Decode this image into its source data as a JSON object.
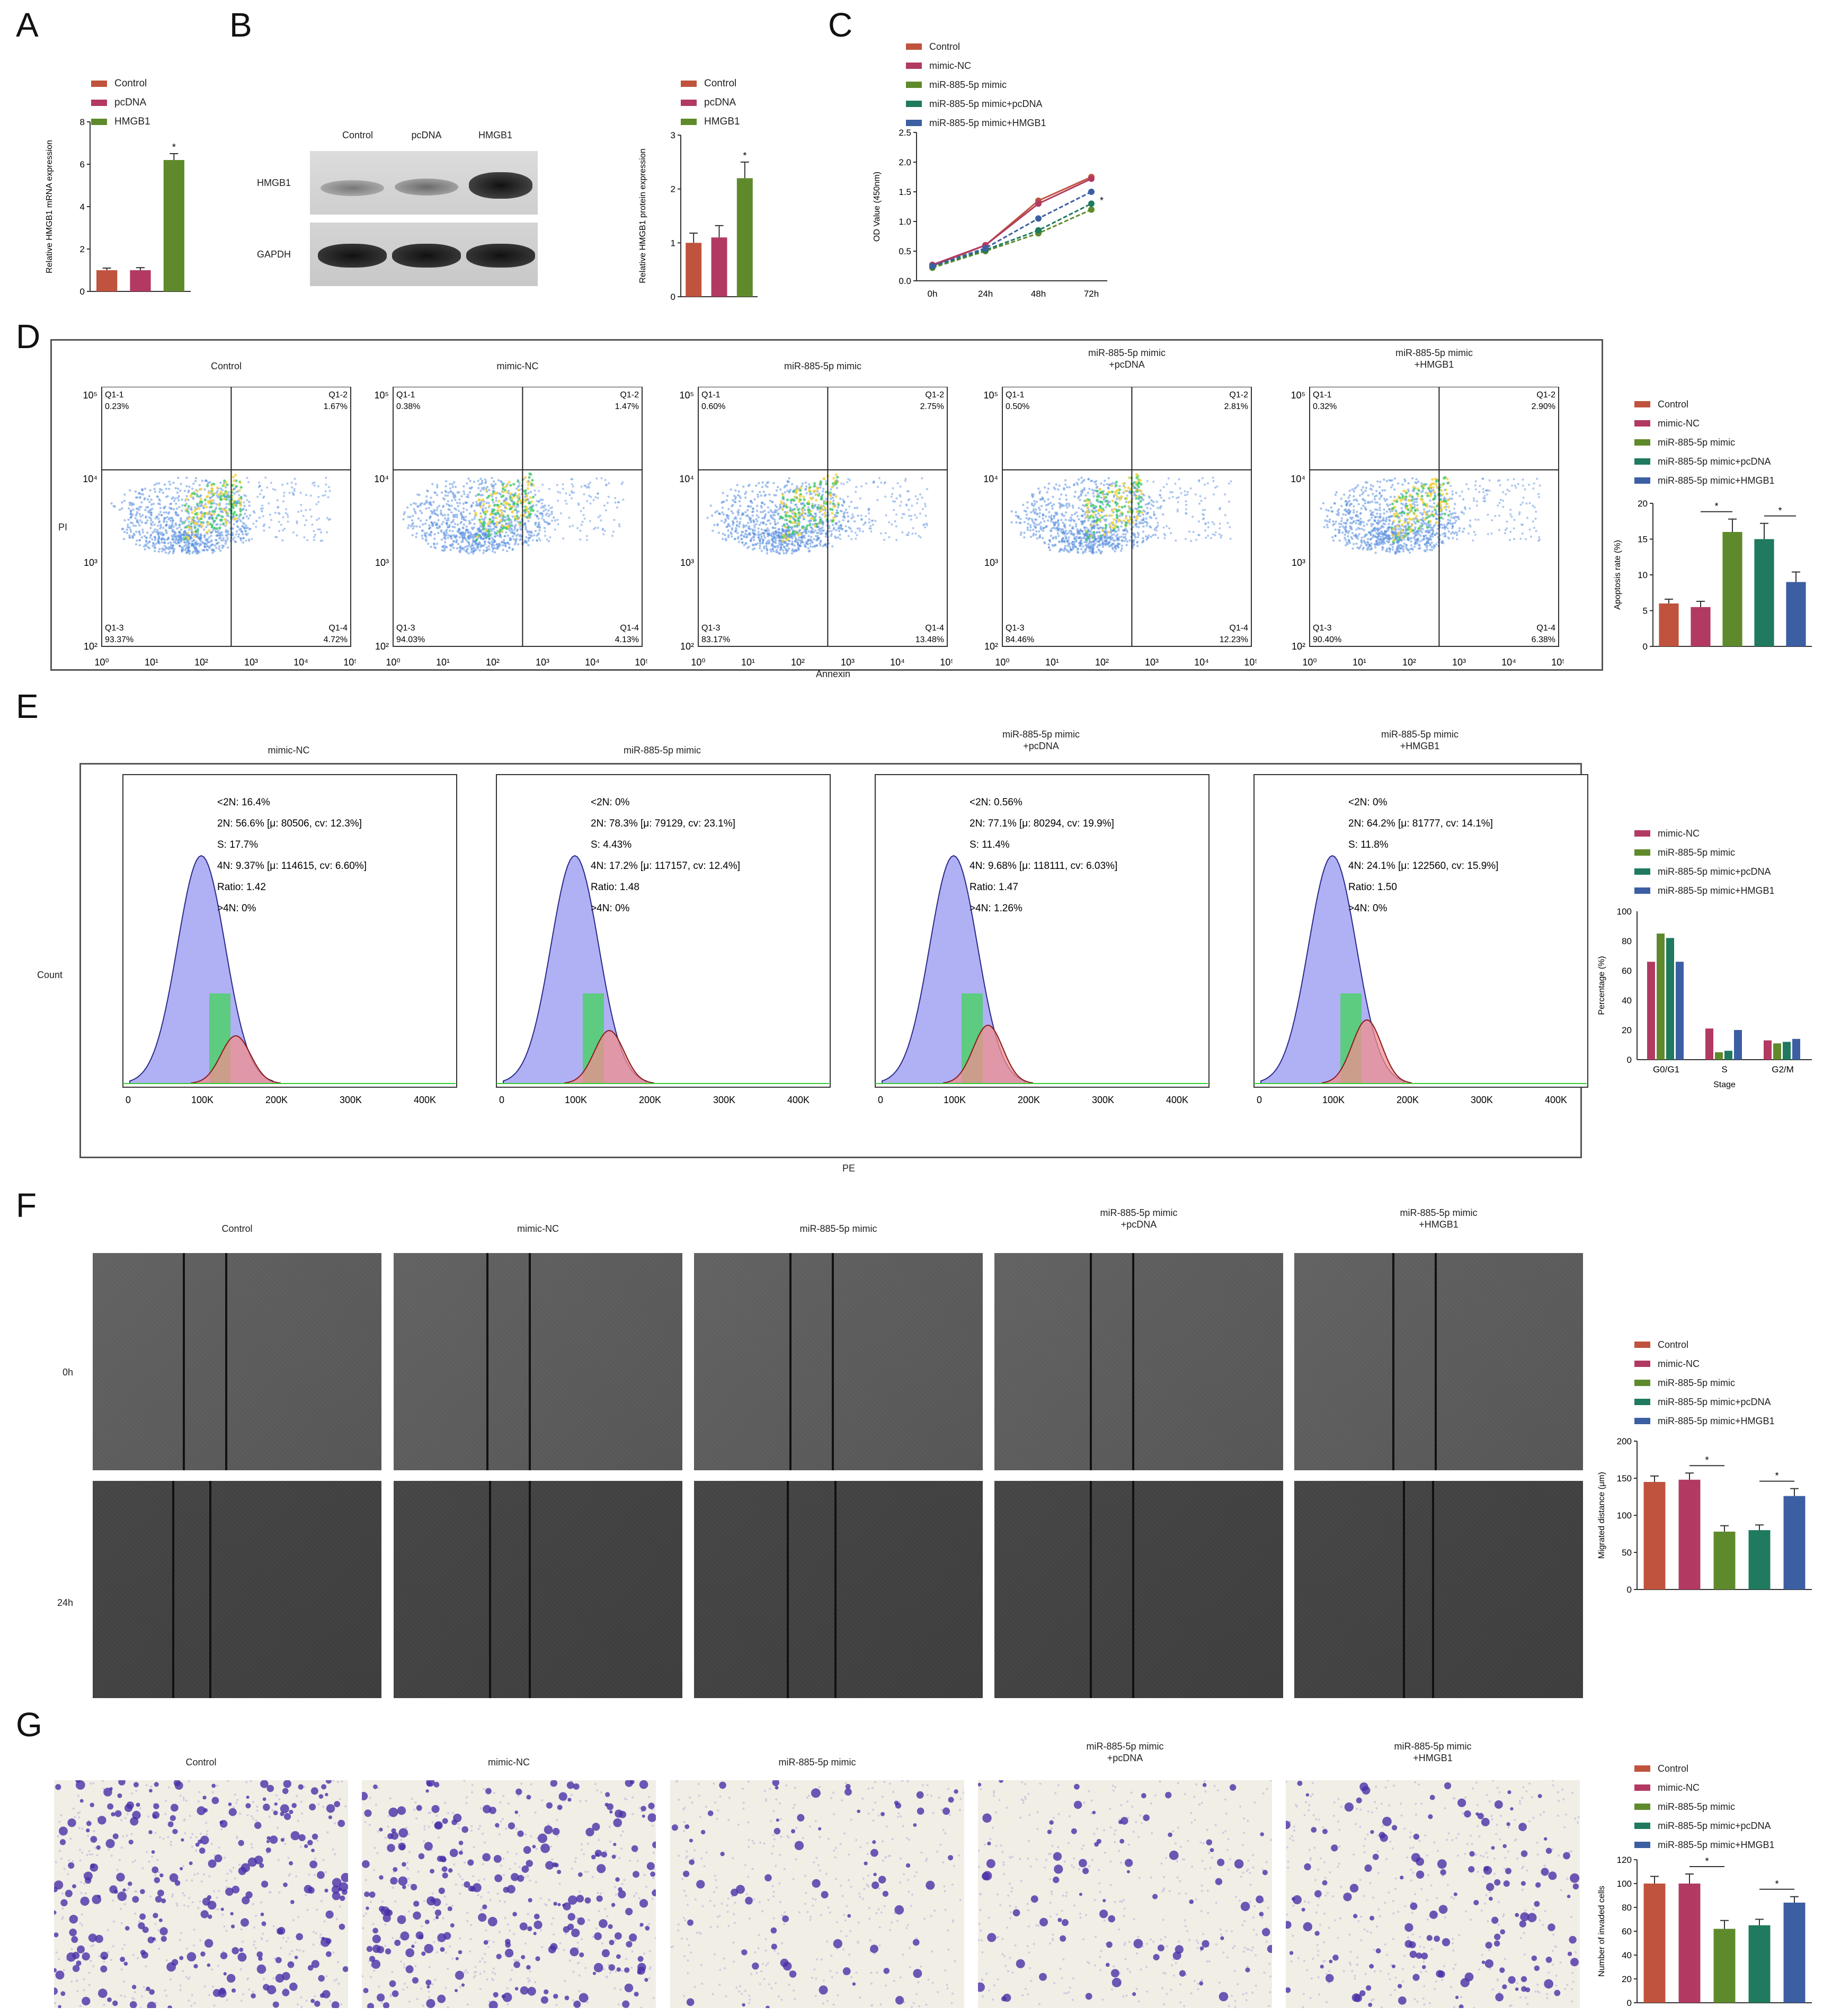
{
  "panel_labels": {
    "A": "A",
    "B": "B",
    "C": "C",
    "D": "D",
    "E": "E",
    "F": "F",
    "G": "G"
  },
  "colors": {
    "control": "#c0533d",
    "mimic_nc": "#b23a62",
    "mimic": "#5f8a2c",
    "pcdna": "#1f7a5f",
    "hmgb1": "#3c5fa3",
    "hmgb1_green": "#5f8a2c",
    "pcdna_pink": "#b23a62"
  },
  "A": {
    "legend": [
      "Control",
      "pcDNA",
      "HMGB1"
    ],
    "ylabel": "Relative HMGB1 mRNA expression",
    "star": "*"
  },
  "B": {
    "blot_cols": [
      "Control",
      "pcDNA",
      "HMGB1"
    ],
    "blot_rows": [
      "HMGB1",
      "GAPDH"
    ],
    "legend": [
      "Control",
      "pcDNA",
      "HMGB1"
    ],
    "ylabel": "Relative HMGB1 protein expression",
    "star": "*"
  },
  "C": {
    "legend": [
      "Control",
      "mimic-NC",
      "miR-885-5p mimic",
      "miR-885-5p mimic+pcDNA",
      "miR-885-5p mimic+HMGB1"
    ],
    "ylabel": "OD Value (450nm)",
    "xticks": [
      "0h",
      "24h",
      "48h",
      "72h"
    ],
    "star": "*"
  },
  "D": {
    "groups": [
      "Control",
      "mimic-NC",
      "miR-885-5p mimic",
      "miR-885-5p mimic\n+pcDNA",
      "miR-885-5p mimic\n+HMGB1"
    ],
    "quad_names": [
      "Q1-1",
      "Q1-2",
      "Q1-3",
      "Q1-4"
    ],
    "quads": [
      [
        "0.23%",
        "1.67%",
        "93.37%",
        "4.72%"
      ],
      [
        "0.38%",
        "1.47%",
        "94.03%",
        "4.13%"
      ],
      [
        "0.60%",
        "2.75%",
        "83.17%",
        "13.48%"
      ],
      [
        "0.50%",
        "2.81%",
        "84.46%",
        "12.23%"
      ],
      [
        "0.32%",
        "2.90%",
        "90.40%",
        "6.38%"
      ]
    ],
    "xlabel": "Annexin",
    "ylabel": "PI",
    "log_ticks": [
      "10⁰",
      "10¹",
      "10²",
      "10³",
      "10⁴",
      "10⁵"
    ],
    "legend": [
      "Control",
      "mimic-NC",
      "miR-885-5p mimic",
      "miR-885-5p mimic+pcDNA",
      "miR-885-5p mimic+HMGB1"
    ],
    "bar_ylabel": "Apoptosis rate (%)",
    "star": "*"
  },
  "E": {
    "groups": [
      "mimic-NC",
      "miR-885-5p mimic",
      "miR-885-5p mimic\n+pcDNA",
      "miR-885-5p mimic\n+HMGB1"
    ],
    "stats": [
      [
        "<2N: 16.4%",
        "2N: 56.6%   [μ: 80506, cv: 12.3%]",
        "S: 17.7%",
        "4N: 9.37%   [μ: 114615, cv: 6.60%]",
        "Ratio: 1.42",
        ">4N: 0%"
      ],
      [
        "<2N: 0%",
        "2N: 78.3%   [μ: 79129, cv: 23.1%]",
        "S: 4.43%",
        "4N: 17.2%  [μ: 117157, cv: 12.4%]",
        "Ratio: 1.48",
        ">4N: 0%"
      ],
      [
        "<2N: 0.56%",
        "2N: 77.1%  [μ: 80294, cv: 19.9%]",
        "S: 11.4%",
        "4N: 9.68%  [μ: 118111, cv: 6.03%]",
        "Ratio: 1.47",
        ">4N: 1.26%"
      ],
      [
        "<2N: 0%",
        "2N: 64.2%   [μ: 81777, cv: 14.1%]",
        "S: 11.8%",
        "4N: 24.1%  [μ: 122560, cv: 15.9%]",
        "Ratio: 1.50",
        ">4N: 0%"
      ]
    ],
    "xticks": [
      "0",
      "100K",
      "200K",
      "300K",
      "400K"
    ],
    "xlabel": "PE",
    "ylabel": "Count",
    "legend": [
      "mimic-NC",
      "miR-885-5p mimic",
      "miR-885-5p mimic+pcDNA",
      "miR-885-5p mimic+HMGB1"
    ],
    "bar_ylabel": "Percentage (%)",
    "bar_xlabel": "Stage",
    "star": "*"
  },
  "F": {
    "groups": [
      "Control",
      "mimic-NC",
      "miR-885-5p mimic",
      "miR-885-5p mimic\n+pcDNA",
      "miR-885-5p mimic\n+HMGB1"
    ],
    "rows": [
      "0h",
      "24h"
    ],
    "legend": [
      "Control",
      "mimic-NC",
      "miR-885-5p mimic",
      "miR-885-5p mimic+pcDNA",
      "miR-885-5p mimic+HMGB1"
    ],
    "bar_ylabel": "Migrated distance (μm)",
    "star": "*"
  },
  "G": {
    "groups": [
      "Control",
      "mimic-NC",
      "miR-885-5p mimic",
      "miR-885-5p mimic\n+pcDNA",
      "miR-885-5p mimic\n+HMGB1"
    ],
    "legend": [
      "Control",
      "mimic-NC",
      "miR-885-5p mimic",
      "miR-885-5p mimic+pcDNA",
      "miR-885-5p mimic+HMGB1"
    ],
    "bar_ylabel": "Number of invaded cells",
    "star": "*"
  },
  "chart_data": [
    {
      "id": "A",
      "type": "bar",
      "categories": [
        "Control",
        "pcDNA",
        "HMGB1"
      ],
      "values": [
        1.0,
        1.0,
        6.2
      ],
      "errors": [
        0.1,
        0.12,
        0.3
      ],
      "ylabel": "Relative HMGB1 mRNA expression",
      "ylim": [
        0,
        8
      ],
      "yticks": [
        "0",
        "2",
        "4",
        "6",
        "8"
      ]
    },
    {
      "id": "B",
      "type": "bar",
      "categories": [
        "Control",
        "pcDNA",
        "HMGB1"
      ],
      "values": [
        1.0,
        1.1,
        2.2
      ],
      "errors": [
        0.18,
        0.22,
        0.3
      ],
      "ylabel": "Relative HMGB1 protein expression",
      "ylim": [
        0,
        3
      ],
      "yticks": [
        "0",
        "1",
        "2",
        "3"
      ]
    },
    {
      "id": "C",
      "type": "line",
      "x": [
        "0h",
        "24h",
        "48h",
        "72h"
      ],
      "ylabel": "OD Value (450nm)",
      "ylim": [
        0,
        2.5
      ],
      "yticks": [
        "0.0",
        "0.5",
        "1.0",
        "1.5",
        "2.0",
        "2.5"
      ],
      "series": [
        {
          "name": "Control",
          "values": [
            0.25,
            0.6,
            1.35,
            1.75
          ]
        },
        {
          "name": "mimic-NC",
          "values": [
            0.27,
            0.6,
            1.3,
            1.72
          ]
        },
        {
          "name": "miR-885-5p mimic",
          "values": [
            0.22,
            0.5,
            0.8,
            1.2
          ]
        },
        {
          "name": "miR-885-5p mimic+pcDNA",
          "values": [
            0.24,
            0.52,
            0.85,
            1.3
          ]
        },
        {
          "name": "miR-885-5p mimic+HMGB1",
          "values": [
            0.25,
            0.55,
            1.05,
            1.5
          ]
        }
      ]
    },
    {
      "id": "D",
      "type": "bar",
      "categories": [
        "Control",
        "mimic-NC",
        "miR-885-5p mimic",
        "miR-885-5p mimic+pcDNA",
        "miR-885-5p mimic+HMGB1"
      ],
      "values": [
        6,
        5.5,
        16,
        15,
        9
      ],
      "errors": [
        0.6,
        0.8,
        1.8,
        2.2,
        1.4
      ],
      "ylabel": "Apoptosis rate (%)",
      "ylim": [
        0,
        20
      ],
      "yticks": [
        "0",
        "5",
        "10",
        "15",
        "20"
      ]
    },
    {
      "id": "E",
      "type": "bar",
      "categories": [
        "G0/G1",
        "S",
        "G2/M"
      ],
      "xlabel": "Stage",
      "ylabel": "Percentage (%)",
      "ylim": [
        0,
        100
      ],
      "yticks": [
        "0",
        "20",
        "40",
        "60",
        "80",
        "100"
      ],
      "series": [
        {
          "name": "mimic-NC",
          "values": [
            66,
            21,
            13
          ]
        },
        {
          "name": "miR-885-5p mimic",
          "values": [
            85,
            5,
            11
          ]
        },
        {
          "name": "miR-885-5p mimic+pcDNA",
          "values": [
            82,
            6,
            12
          ]
        },
        {
          "name": "miR-885-5p mimic+HMGB1",
          "values": [
            66,
            20,
            14
          ]
        }
      ]
    },
    {
      "id": "F",
      "type": "bar",
      "categories": [
        "Control",
        "mimic-NC",
        "miR-885-5p mimic",
        "miR-885-5p mimic+pcDNA",
        "miR-885-5p mimic+HMGB1"
      ],
      "values": [
        145,
        148,
        78,
        80,
        126
      ],
      "errors": [
        8,
        9,
        8,
        7,
        10
      ],
      "ylabel": "Migrated distance (μm)",
      "ylim": [
        0,
        200
      ],
      "yticks": [
        "0",
        "50",
        "100",
        "150",
        "200"
      ]
    },
    {
      "id": "G",
      "type": "bar",
      "categories": [
        "Control",
        "mimic-NC",
        "miR-885-5p mimic",
        "miR-885-5p mimic+pcDNA",
        "miR-885-5p mimic+HMGB1"
      ],
      "values": [
        100,
        100,
        62,
        65,
        84
      ],
      "errors": [
        6,
        8,
        7,
        5,
        5
      ],
      "ylabel": "Number of invaded cells",
      "ylim": [
        0,
        120
      ],
      "yticks": [
        "0",
        "20",
        "40",
        "60",
        "80",
        "100",
        "120"
      ]
    }
  ]
}
